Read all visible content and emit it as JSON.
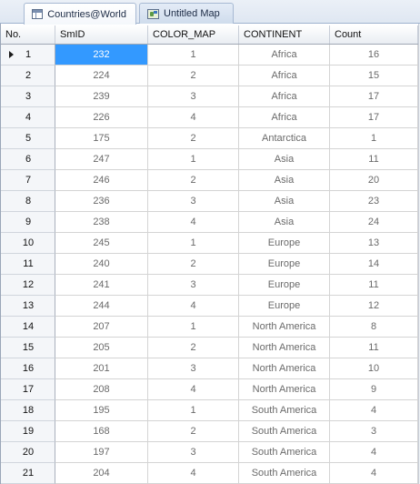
{
  "tabs": [
    {
      "label": "Countries@World",
      "icon": "table-icon",
      "active": true
    },
    {
      "label": "Untitled Map",
      "icon": "map-icon",
      "active": false
    }
  ],
  "grid": {
    "columns": [
      "No.",
      "SmID",
      "COLOR_MAP",
      "CONTINENT",
      "Count"
    ],
    "current_row": 1,
    "selected_cell": {
      "row": 1,
      "column": "SmID"
    },
    "selection_color": "#3399ff",
    "rows": [
      {
        "no": "1",
        "smid": "232",
        "color_map": "1",
        "continent": "Africa",
        "count": "16"
      },
      {
        "no": "2",
        "smid": "224",
        "color_map": "2",
        "continent": "Africa",
        "count": "15"
      },
      {
        "no": "3",
        "smid": "239",
        "color_map": "3",
        "continent": "Africa",
        "count": "17"
      },
      {
        "no": "4",
        "smid": "226",
        "color_map": "4",
        "continent": "Africa",
        "count": "17"
      },
      {
        "no": "5",
        "smid": "175",
        "color_map": "2",
        "continent": "Antarctica",
        "count": "1"
      },
      {
        "no": "6",
        "smid": "247",
        "color_map": "1",
        "continent": "Asia",
        "count": "11"
      },
      {
        "no": "7",
        "smid": "246",
        "color_map": "2",
        "continent": "Asia",
        "count": "20"
      },
      {
        "no": "8",
        "smid": "236",
        "color_map": "3",
        "continent": "Asia",
        "count": "23"
      },
      {
        "no": "9",
        "smid": "238",
        "color_map": "4",
        "continent": "Asia",
        "count": "24"
      },
      {
        "no": "10",
        "smid": "245",
        "color_map": "1",
        "continent": "Europe",
        "count": "13"
      },
      {
        "no": "11",
        "smid": "240",
        "color_map": "2",
        "continent": "Europe",
        "count": "14"
      },
      {
        "no": "12",
        "smid": "241",
        "color_map": "3",
        "continent": "Europe",
        "count": "11"
      },
      {
        "no": "13",
        "smid": "244",
        "color_map": "4",
        "continent": "Europe",
        "count": "12"
      },
      {
        "no": "14",
        "smid": "207",
        "color_map": "1",
        "continent": "North America",
        "count": "8"
      },
      {
        "no": "15",
        "smid": "205",
        "color_map": "2",
        "continent": "North America",
        "count": "11"
      },
      {
        "no": "16",
        "smid": "201",
        "color_map": "3",
        "continent": "North America",
        "count": "10"
      },
      {
        "no": "17",
        "smid": "208",
        "color_map": "4",
        "continent": "North America",
        "count": "9"
      },
      {
        "no": "18",
        "smid": "195",
        "color_map": "1",
        "continent": "South America",
        "count": "4"
      },
      {
        "no": "19",
        "smid": "168",
        "color_map": "2",
        "continent": "South America",
        "count": "3"
      },
      {
        "no": "20",
        "smid": "197",
        "color_map": "3",
        "continent": "South America",
        "count": "4"
      },
      {
        "no": "21",
        "smid": "204",
        "color_map": "4",
        "continent": "South America",
        "count": "4"
      }
    ]
  }
}
